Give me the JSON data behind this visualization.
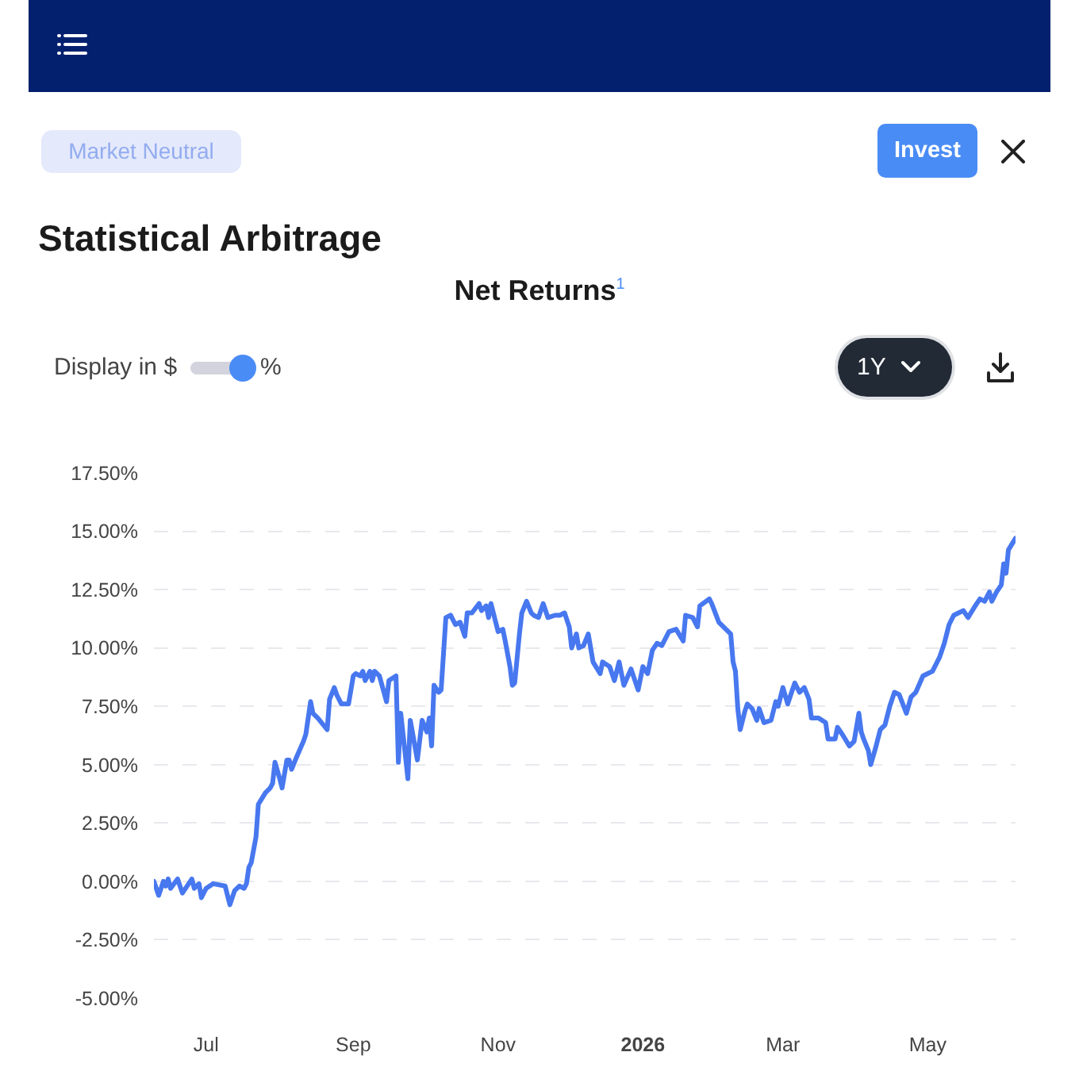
{
  "chart_data": {
    "type": "line",
    "title": "Statistical Arbitrage",
    "subtitle": "Net Returns$^{1}$",
    "annotations": [
      "Market Neutral",
      "Invest",
      "Display in $",
      "%",
      "1Y"
    ],
    "x": [
      "2025-06-09",
      "2025-06-11",
      "2025-06-13",
      "2025-06-14",
      "2025-06-15",
      "2025-06-16",
      "2025-06-19",
      "2025-06-21",
      "2025-06-25",
      "2025-06-26",
      "2025-06-28",
      "2025-06-29",
      "2025-07-01",
      "2025-07-04",
      "2025-07-09",
      "2025-07-11",
      "2025-07-13",
      "2025-07-15",
      "2025-07-17",
      "2025-07-18",
      "2025-07-19",
      "2025-07-20",
      "2025-07-22",
      "2025-07-23",
      "2025-07-26",
      "2025-07-28",
      "2025-07-29",
      "2025-07-30",
      "2025-08-01",
      "2025-08-02",
      "2025-08-04",
      "2025-08-05",
      "2025-08-06",
      "2025-08-08",
      "2025-08-11",
      "2025-08-12",
      "2025-08-14",
      "2025-08-15",
      "2025-08-17",
      "2025-08-21",
      "2025-08-22",
      "2025-08-24",
      "2025-08-25",
      "2025-08-27",
      "2025-08-30",
      "2025-09-01",
      "2025-09-02",
      "2025-09-04",
      "2025-09-05",
      "2025-09-06",
      "2025-09-08",
      "2025-09-09",
      "2025-09-10",
      "2025-09-12",
      "2025-09-15",
      "2025-09-16",
      "2025-09-19",
      "2025-09-20",
      "2025-09-21",
      "2025-09-24",
      "2025-09-25",
      "2025-09-28",
      "2025-09-30",
      "2025-10-02",
      "2025-10-03",
      "2025-10-04",
      "2025-10-05",
      "2025-10-07",
      "2025-10-08",
      "2025-10-10",
      "2025-10-12",
      "2025-10-14",
      "2025-10-16",
      "2025-10-18",
      "2025-10-19",
      "2025-10-21",
      "2025-10-24",
      "2025-10-25",
      "2025-10-27",
      "2025-10-28",
      "2025-10-29",
      "2025-10-31",
      "2025-11-01",
      "2025-11-03",
      "2025-11-04",
      "2025-11-06",
      "2025-11-07",
      "2025-11-08",
      "2025-11-10",
      "2025-11-11",
      "2025-11-13",
      "2025-11-15",
      "2025-11-16",
      "2025-11-18",
      "2025-11-20",
      "2025-11-22",
      "2025-11-25",
      "2025-11-27",
      "2025-11-29",
      "2025-12-01",
      "2025-12-02",
      "2025-12-04",
      "2025-12-05",
      "2025-12-07",
      "2025-12-09",
      "2025-12-10",
      "2025-12-11",
      "2025-12-14",
      "2025-12-15",
      "2025-12-18",
      "2025-12-20",
      "2025-12-22",
      "2025-12-24",
      "2025-12-27",
      "2025-12-30",
      "2026-01-01",
      "2026-01-03",
      "2026-01-05",
      "2026-01-07",
      "2026-01-09",
      "2026-01-12",
      "2026-01-15",
      "2026-01-18",
      "2026-01-19",
      "2026-01-22",
      "2026-01-24",
      "2026-01-25",
      "2026-01-29",
      "2026-01-30",
      "2026-02-02",
      "2026-02-05",
      "2026-02-07",
      "2026-02-08",
      "2026-02-09",
      "2026-02-10",
      "2026-02-11",
      "2026-02-13",
      "2026-02-14",
      "2026-02-16",
      "2026-02-18",
      "2026-02-19",
      "2026-02-21",
      "2026-02-24",
      "2026-02-26",
      "2026-02-27",
      "2026-03-01",
      "2026-03-03",
      "2026-03-06",
      "2026-03-08",
      "2026-03-10",
      "2026-03-12",
      "2026-03-13",
      "2026-03-16",
      "2026-03-19",
      "2026-03-20",
      "2026-03-23",
      "2026-03-24",
      "2026-03-26",
      "2026-03-29",
      "2026-03-31",
      "2026-04-02",
      "2026-04-03",
      "2026-04-04",
      "2026-04-06",
      "2026-04-07",
      "2026-04-09",
      "2026-04-11",
      "2026-04-13",
      "2026-04-15",
      "2026-04-17",
      "2026-04-19",
      "2026-04-22",
      "2026-04-24",
      "2026-04-26",
      "2026-04-29",
      "2026-05-01",
      "2026-05-03",
      "2026-05-06",
      "2026-05-08",
      "2026-05-10",
      "2026-05-12",
      "2026-05-14",
      "2026-05-16",
      "2026-05-18",
      "2026-05-21",
      "2026-05-23",
      "2026-05-25",
      "2026-05-27",
      "2026-05-28",
      "2026-05-30",
      "2026-06-01",
      "2026-06-02",
      "2026-06-03",
      "2026-06-04",
      "2026-06-07"
    ],
    "values": [
      0.0,
      -0.6,
      0.0,
      -0.2,
      0.1,
      -0.3,
      0.1,
      -0.5,
      0.1,
      -0.3,
      -0.1,
      -0.7,
      -0.3,
      -0.1,
      -0.2,
      -1.0,
      -0.4,
      -0.2,
      -0.3,
      -0.1,
      0.6,
      0.8,
      1.9,
      3.3,
      3.8,
      4.0,
      4.2,
      5.1,
      4.4,
      4.0,
      5.2,
      5.2,
      4.8,
      5.3,
      6.0,
      6.3,
      7.7,
      7.2,
      7.0,
      6.5,
      7.8,
      8.3,
      8.0,
      7.6,
      7.6,
      8.8,
      8.9,
      8.8,
      9.0,
      8.6,
      9.0,
      8.6,
      9.0,
      8.8,
      7.7,
      8.6,
      8.8,
      5.1,
      7.2,
      4.4,
      6.9,
      5.2,
      6.9,
      6.4,
      7.0,
      5.8,
      8.4,
      8.1,
      8.2,
      11.3,
      11.4,
      11.0,
      11.1,
      10.5,
      11.5,
      11.5,
      11.9,
      11.6,
      11.8,
      11.3,
      11.9,
      11.1,
      10.7,
      10.8,
      10.3,
      9.2,
      8.4,
      8.5,
      10.6,
      11.5,
      12.0,
      11.5,
      11.4,
      11.3,
      11.9,
      11.3,
      11.4,
      11.4,
      11.5,
      10.9,
      10.0,
      10.6,
      10.0,
      10.1,
      10.6,
      10.0,
      9.4,
      8.9,
      9.4,
      9.2,
      8.6,
      9.4,
      8.4,
      9.1,
      8.2,
      9.2,
      8.9,
      9.9,
      10.2,
      10.1,
      10.7,
      10.8,
      10.3,
      11.4,
      11.3,
      10.9,
      11.8,
      12.1,
      11.9,
      11.1,
      10.8,
      10.6,
      9.4,
      9.0,
      7.4,
      6.5,
      7.3,
      7.6,
      7.4,
      6.9,
      7.4,
      6.8,
      6.9,
      7.7,
      7.5,
      8.3,
      7.6,
      8.5,
      8.1,
      8.3,
      7.8,
      7.0,
      7.0,
      6.8,
      6.1,
      6.1,
      6.6,
      6.3,
      5.8,
      6.0,
      7.2,
      6.4,
      6.1,
      5.6,
      5.0,
      5.7,
      6.5,
      6.7,
      7.5,
      8.1,
      8.0,
      7.2,
      7.9,
      8.1,
      8.8,
      8.9,
      9.0,
      9.6,
      10.2,
      11.0,
      11.4,
      11.5,
      11.6,
      11.3,
      11.8,
      12.1,
      12.0,
      12.4,
      12.0,
      12.4,
      12.7,
      13.6,
      13.2,
      14.2,
      14.7
    ],
    "color": "#4878ef",
    "xlim": [
      "2025-06-09",
      "2026-06-07"
    ],
    "xticks": [
      {
        "value": "2025-07-01",
        "label": "Jul"
      },
      {
        "value": "2025-09-01",
        "label": "Sep"
      },
      {
        "value": "2025-11-01",
        "label": "Nov"
      },
      {
        "value": "2026-01-01",
        "label": "2026"
      },
      {
        "value": "2026-03-01",
        "label": "Mar"
      },
      {
        "value": "2026-05-01",
        "label": "May"
      }
    ],
    "ylim": [
      -5,
      17.5
    ],
    "yticks": [
      {
        "value": -5,
        "label": "-5.00%"
      },
      {
        "value": -2.5,
        "label": "-2.50%"
      },
      {
        "value": 0,
        "label": "0.00%"
      },
      {
        "value": 2.5,
        "label": "2.50%"
      },
      {
        "value": 5,
        "label": "5.00%"
      },
      {
        "value": 7.5,
        "label": "7.50%"
      },
      {
        "value": 10,
        "label": "10.00%"
      },
      {
        "value": 12.5,
        "label": "12.50%"
      },
      {
        "value": 15,
        "label": "15.00%"
      },
      {
        "value": 17.5,
        "label": "17.50%"
      }
    ],
    "grid": "y"
  }
}
